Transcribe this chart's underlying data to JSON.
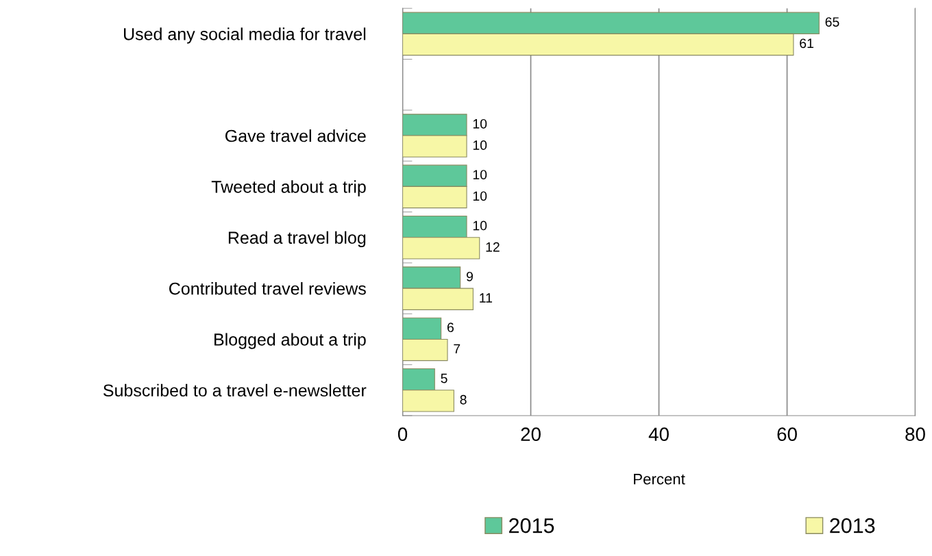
{
  "chart_data": {
    "type": "bar",
    "orientation": "horizontal",
    "xlabel": "Percent",
    "categories": [
      "Used any social media for travel",
      null,
      "Gave travel advice",
      "Tweeted about a trip",
      "Read a travel blog",
      "Contributed travel reviews",
      "Blogged about a trip",
      "Subscribed to a travel e-newsletter"
    ],
    "series": [
      {
        "name": "2015",
        "color": "#5ec89a",
        "values": [
          65,
          null,
          10,
          10,
          10,
          9,
          6,
          5
        ]
      },
      {
        "name": "2013",
        "color": "#f7f7a6",
        "values": [
          61,
          null,
          10,
          10,
          12,
          11,
          7,
          8
        ]
      }
    ],
    "xlim": [
      0,
      80
    ],
    "xticks": [
      0,
      20,
      40,
      60,
      80
    ],
    "grid": "x",
    "legend": "bottom",
    "data_labels": true
  }
}
